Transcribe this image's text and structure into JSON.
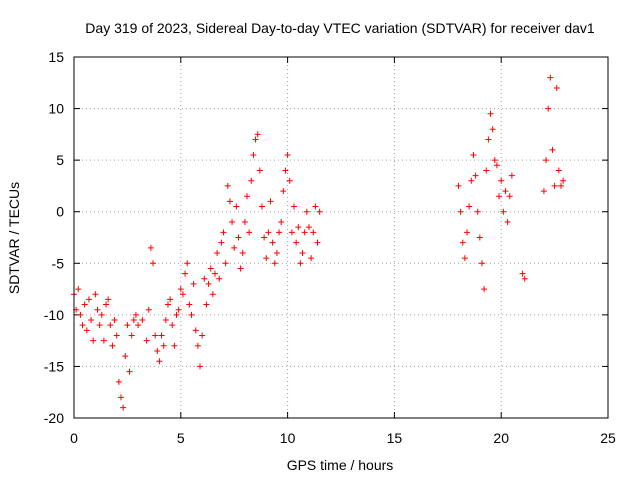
{
  "chart_data": {
    "type": "scatter",
    "title": "Day 319 of 2023, Sidereal Day-to-day VTEC variation (SDTVAR) for receiver dav1",
    "xlabel": "GPS time / hours",
    "ylabel": "SDTVAR / TECUs",
    "xlim": [
      0,
      25
    ],
    "ylim": [
      -20,
      15
    ],
    "xticks": [
      0,
      5,
      10,
      15,
      20,
      25
    ],
    "yticks": [
      -20,
      -15,
      -10,
      -5,
      0,
      5,
      10,
      15
    ],
    "grid": true,
    "marker": "+",
    "color": "#ff0000",
    "series": [
      {
        "name": "SDTVAR",
        "points": [
          [
            0.0,
            -8.0
          ],
          [
            0.1,
            -9.5
          ],
          [
            0.2,
            -7.5
          ],
          [
            0.3,
            -10.0
          ],
          [
            0.4,
            -11.0
          ],
          [
            0.5,
            -9.0
          ],
          [
            0.6,
            -11.5
          ],
          [
            0.7,
            -8.5
          ],
          [
            0.8,
            -10.5
          ],
          [
            0.9,
            -12.5
          ],
          [
            1.0,
            -8.0
          ],
          [
            1.1,
            -9.5
          ],
          [
            1.2,
            -11.0
          ],
          [
            1.3,
            -10.0
          ],
          [
            1.4,
            -12.5
          ],
          [
            1.5,
            -9.0
          ],
          [
            1.6,
            -8.5
          ],
          [
            1.7,
            -11.0
          ],
          [
            1.8,
            -13.0
          ],
          [
            1.9,
            -10.5
          ],
          [
            2.0,
            -12.0
          ],
          [
            2.1,
            -16.5
          ],
          [
            2.2,
            -18.0
          ],
          [
            2.3,
            -19.0
          ],
          [
            2.4,
            -14.0
          ],
          [
            2.5,
            -11.0
          ],
          [
            2.6,
            -15.5
          ],
          [
            2.7,
            -12.0
          ],
          [
            2.8,
            -10.5
          ],
          [
            2.9,
            -10.0
          ],
          [
            3.0,
            -11.0
          ],
          [
            3.2,
            -10.5
          ],
          [
            3.4,
            -12.5
          ],
          [
            3.5,
            -9.5
          ],
          [
            3.6,
            -3.5
          ],
          [
            3.7,
            -5.0
          ],
          [
            3.8,
            -12.0
          ],
          [
            3.9,
            -13.5
          ],
          [
            4.0,
            -14.5
          ],
          [
            4.1,
            -12.0
          ],
          [
            4.2,
            -13.0
          ],
          [
            4.3,
            -10.5
          ],
          [
            4.4,
            -9.0
          ],
          [
            4.5,
            -8.5
          ],
          [
            4.6,
            -11.0
          ],
          [
            4.7,
            -13.0
          ],
          [
            4.8,
            -10.0
          ],
          [
            4.9,
            -9.5
          ],
          [
            5.0,
            -7.5
          ],
          [
            5.1,
            -8.0
          ],
          [
            5.2,
            -6.0
          ],
          [
            5.3,
            -5.0
          ],
          [
            5.4,
            -9.0
          ],
          [
            5.5,
            -10.0
          ],
          [
            5.6,
            -7.0
          ],
          [
            5.7,
            -11.5
          ],
          [
            5.8,
            -13.0
          ],
          [
            5.9,
            -15.0
          ],
          [
            6.0,
            -12.0
          ],
          [
            6.1,
            -6.5
          ],
          [
            6.2,
            -9.0
          ],
          [
            6.3,
            -7.0
          ],
          [
            6.4,
            -5.5
          ],
          [
            6.5,
            -8.0
          ],
          [
            6.6,
            -6.0
          ],
          [
            6.7,
            -4.0
          ],
          [
            6.8,
            -6.5
          ],
          [
            6.9,
            -3.0
          ],
          [
            7.0,
            -2.0
          ],
          [
            7.1,
            -5.0
          ],
          [
            7.2,
            2.5
          ],
          [
            7.3,
            1.0
          ],
          [
            7.4,
            -1.0
          ],
          [
            7.5,
            -3.5
          ],
          [
            7.6,
            0.5
          ],
          [
            7.7,
            -2.5
          ],
          [
            7.8,
            -5.5
          ],
          [
            7.9,
            -4.0
          ],
          [
            8.0,
            -1.0
          ],
          [
            8.1,
            1.5
          ],
          [
            8.2,
            -2.0
          ],
          [
            8.3,
            3.0
          ],
          [
            8.4,
            5.5
          ],
          [
            8.5,
            7.0
          ],
          [
            8.6,
            7.5
          ],
          [
            8.7,
            4.0
          ],
          [
            8.8,
            0.5
          ],
          [
            8.9,
            -2.5
          ],
          [
            9.0,
            -4.5
          ],
          [
            9.1,
            -2.0
          ],
          [
            9.2,
            1.0
          ],
          [
            9.3,
            -3.0
          ],
          [
            9.4,
            -5.0
          ],
          [
            9.5,
            -4.0
          ],
          [
            9.6,
            -2.0
          ],
          [
            9.7,
            -1.0
          ],
          [
            9.8,
            2.0
          ],
          [
            9.9,
            4.0
          ],
          [
            10.0,
            5.5
          ],
          [
            10.1,
            3.0
          ],
          [
            10.2,
            -2.0
          ],
          [
            10.3,
            0.5
          ],
          [
            10.4,
            -3.0
          ],
          [
            10.5,
            -1.5
          ],
          [
            10.6,
            -5.0
          ],
          [
            10.7,
            -4.0
          ],
          [
            10.8,
            -2.0
          ],
          [
            10.9,
            0.0
          ],
          [
            11.0,
            -1.5
          ],
          [
            11.1,
            -4.5
          ],
          [
            11.2,
            -2.0
          ],
          [
            11.3,
            0.5
          ],
          [
            11.4,
            -3.0
          ],
          [
            11.5,
            0.0
          ],
          [
            18.0,
            2.5
          ],
          [
            18.1,
            0.0
          ],
          [
            18.2,
            -3.0
          ],
          [
            18.3,
            -4.5
          ],
          [
            18.4,
            -2.0
          ],
          [
            18.5,
            0.5
          ],
          [
            18.6,
            3.0
          ],
          [
            18.7,
            5.5
          ],
          [
            18.8,
            3.5
          ],
          [
            18.9,
            0.0
          ],
          [
            19.0,
            -2.5
          ],
          [
            19.1,
            -5.0
          ],
          [
            19.2,
            -7.5
          ],
          [
            19.3,
            4.0
          ],
          [
            19.4,
            7.0
          ],
          [
            19.5,
            9.5
          ],
          [
            19.6,
            8.0
          ],
          [
            19.7,
            5.0
          ],
          [
            19.8,
            4.5
          ],
          [
            19.9,
            1.5
          ],
          [
            20.0,
            3.0
          ],
          [
            20.1,
            0.0
          ],
          [
            20.2,
            2.0
          ],
          [
            20.3,
            -1.0
          ],
          [
            20.4,
            1.5
          ],
          [
            20.5,
            3.5
          ],
          [
            21.0,
            -6.0
          ],
          [
            21.1,
            -6.5
          ],
          [
            22.0,
            2.0
          ],
          [
            22.1,
            5.0
          ],
          [
            22.2,
            10.0
          ],
          [
            22.3,
            13.0
          ],
          [
            22.4,
            6.0
          ],
          [
            22.5,
            2.5
          ],
          [
            22.6,
            12.0
          ],
          [
            22.7,
            4.0
          ],
          [
            22.8,
            2.5
          ],
          [
            22.9,
            3.0
          ]
        ]
      }
    ]
  }
}
